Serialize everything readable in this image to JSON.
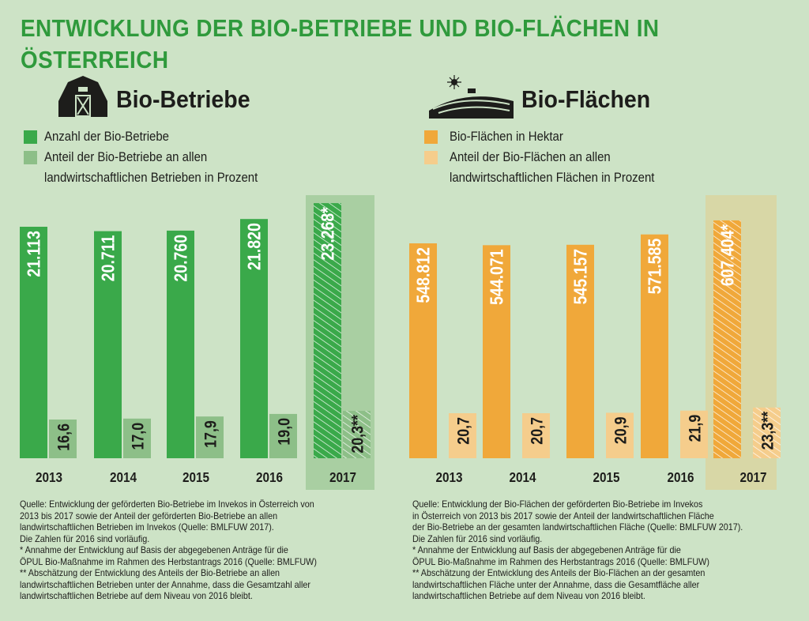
{
  "title": "ENTWICKLUNG DER BIO-BETRIEBE UND BIO-FLÄCHEN IN ÖSTERREICH",
  "colors": {
    "title": "#2f9a3c",
    "green": "#3aa94a",
    "light_green": "#8dbf88",
    "green_highlight": "#a9cfa2",
    "orange": "#f0a83a",
    "light_orange": "#f5cd8c",
    "orange_highlight": "#d8d7a6"
  },
  "left": {
    "heading": "Bio-Betriebe",
    "icon": "barn-icon",
    "legend": [
      "Anzahl der Bio-Betriebe",
      "Anteil der Bio-Betriebe an allen",
      "landwirtschaftlichen Betrieben in Prozent"
    ],
    "notes": [
      "Quelle: Entwicklung der geförderten Bio-Betriebe im Invekos in Österreich von",
      "2013 bis 2017 sowie der Anteil der geförderten Bio-Betriebe an allen",
      "landwirtschaftlichen Betrieben im Invekos (Quelle: BMLFUW 2017).",
      "Die Zahlen für 2016 sind vorläufig.",
      "* Annahme der Entwicklung auf Basis der abgegebenen Anträge für die",
      "ÖPUL Bio-Maßnahme im Rahmen des Herbstantrags 2016 (Quelle: BMLFUW)",
      "** Abschätzung der Entwicklung des Anteils der Bio-Betriebe an allen",
      "landwirtschaftlichen Betrieben unter der Annahme, dass die Gesamtzahl aller",
      "landwirtschaftlichen Betriebe auf dem Niveau von 2016 bleibt."
    ]
  },
  "right": {
    "heading": "Bio-Flächen",
    "icon": "farm-fields-icon",
    "legend": [
      "Bio-Flächen in Hektar",
      "Anteil der Bio-Flächen an allen",
      "landwirtschaftlichen Flächen in Prozent"
    ],
    "notes": [
      "Quelle: Entwicklung der Bio-Flächen der geförderten Bio-Betriebe im Invekos",
      "in Österreich von 2013 bis 2017 sowie der Anteil der landwirtschaftlichen Fläche",
      "der Bio-Betriebe an der gesamten landwirtschaftlichen Fläche (Quelle: BMLFUW 2017).",
      "Die Zahlen für 2016 sind vorläufig.",
      "* Annahme der Entwicklung auf Basis der abgegebenen Anträge für die",
      "ÖPUL Bio-Maßnahme im Rahmen des Herbstantrags 2016 (Quelle: BMLFUW)",
      "** Abschätzung der Entwicklung des Anteils der Bio-Flächen an der gesamten",
      "landwirtschaftlichen Fläche unter der Annahme, dass die Gesamtfläche aller",
      "landwirtschaftlichen Betriebe auf dem Niveau von 2016 bleibt."
    ]
  },
  "chart_data": [
    {
      "type": "bar",
      "categories": [
        "2013",
        "2014",
        "2015",
        "2016",
        "2017"
      ],
      "highlight": "2017",
      "hatched": "2017",
      "series": [
        {
          "name": "Anzahl der Bio-Betriebe",
          "values": [
            21113,
            20711,
            20760,
            21820,
            23268
          ],
          "labels": [
            "21.113",
            "20.711",
            "20.760",
            "21.820",
            "23.268*"
          ]
        },
        {
          "name": "Anteil der Bio-Betriebe an allen landwirtschaftlichen Betrieben in Prozent",
          "values": [
            16.6,
            17.0,
            17.9,
            19.0,
            20.3
          ],
          "labels": [
            "16,6",
            "17,0",
            "17,9",
            "19,0",
            "20,3**"
          ]
        }
      ]
    },
    {
      "type": "bar",
      "categories": [
        "2013",
        "2014",
        "2015",
        "2016",
        "2017"
      ],
      "highlight": "2017",
      "hatched": "2017",
      "series": [
        {
          "name": "Bio-Flächen in Hektar",
          "values": [
            548812,
            544071,
            545157,
            571585,
            607404
          ],
          "labels": [
            "548.812",
            "544.071",
            "545.157",
            "571.585",
            "607.404*"
          ]
        },
        {
          "name": "Anteil der Bio-Flächen an allen landwirtschaftlichen Flächen in Prozent",
          "values": [
            20.7,
            20.7,
            20.9,
            21.9,
            23.3
          ],
          "labels": [
            "20,7",
            "20,7",
            "20,9",
            "21,9",
            "23,3**"
          ]
        }
      ]
    }
  ]
}
